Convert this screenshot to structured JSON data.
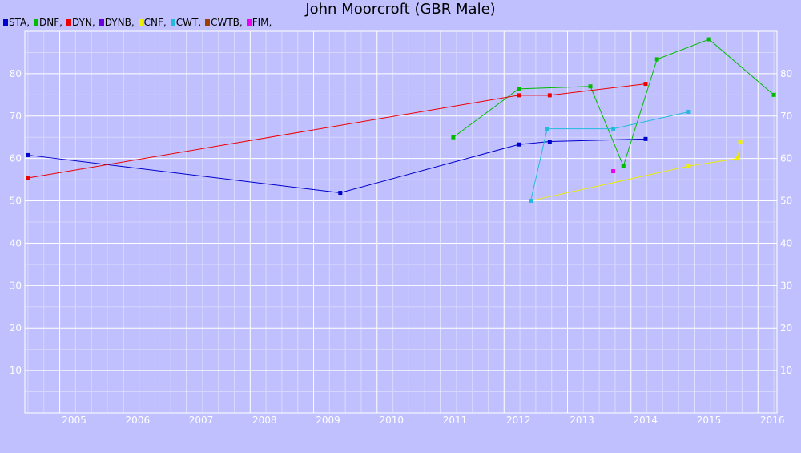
{
  "chart_data": {
    "type": "line",
    "title": "John Moorcroft (GBR Male)",
    "xlabel": "",
    "ylabel": "",
    "xlim": [
      2004.45,
      2016.3
    ],
    "ylim": [
      0,
      90
    ],
    "x_ticks": [
      "2005",
      "2006",
      "2007",
      "2008",
      "2009",
      "2010",
      "2011",
      "2012",
      "2013",
      "2014",
      "2015",
      "2016"
    ],
    "y_ticks": [
      "10",
      "20",
      "30",
      "40",
      "50",
      "60",
      "70",
      "80"
    ],
    "grid": true,
    "legend_position": "top-left",
    "series": [
      {
        "name": "STA,",
        "color": "#0000cc",
        "points": [
          [
            2004.5,
            60.8
          ],
          [
            2009.42,
            51.9
          ],
          [
            2012.23,
            63.3
          ],
          [
            2012.72,
            64.0
          ],
          [
            2014.23,
            64.6
          ]
        ]
      },
      {
        "name": "DNF,",
        "color": "#00bb00",
        "points": [
          [
            2011.2,
            65.0
          ],
          [
            2012.23,
            76.4
          ],
          [
            2013.36,
            77.0
          ],
          [
            2013.88,
            58.2
          ],
          [
            2014.41,
            83.4
          ],
          [
            2015.23,
            88.1
          ],
          [
            2016.25,
            75.0
          ]
        ]
      },
      {
        "name": "DYN,",
        "color": "#ee0000",
        "points": [
          [
            2004.5,
            55.4
          ],
          [
            2012.23,
            74.9
          ],
          [
            2012.72,
            74.9
          ],
          [
            2014.23,
            77.6
          ]
        ]
      },
      {
        "name": "DYNB,",
        "color": "#6a00e0",
        "points": []
      },
      {
        "name": "CNF,",
        "color": "#eeee00",
        "points": [
          [
            2012.42,
            50.0
          ],
          [
            2014.91,
            58.2
          ],
          [
            2015.68,
            60.0
          ],
          [
            2015.72,
            64.0
          ]
        ]
      },
      {
        "name": "CWT,",
        "color": "#22bbdd",
        "points": [
          [
            2012.42,
            50.0
          ],
          [
            2012.68,
            67.0
          ],
          [
            2013.72,
            67.0
          ],
          [
            2014.91,
            71.0
          ]
        ]
      },
      {
        "name": "CWTB,",
        "color": "#a04000",
        "points": []
      },
      {
        "name": "FIM,",
        "color": "#ee00ee",
        "points": [
          [
            2013.72,
            57.0
          ]
        ]
      }
    ]
  }
}
